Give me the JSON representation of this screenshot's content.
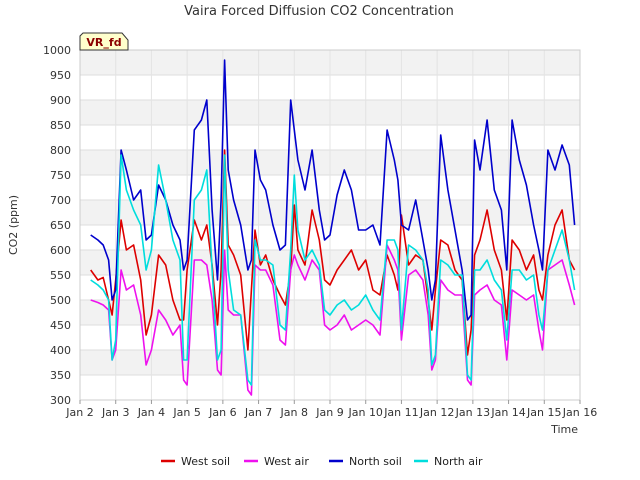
{
  "chart_data": {
    "type": "line",
    "title": "Vaira Forced Diffusion CO2 Concentration",
    "xlabel": "Time",
    "ylabel": "CO2 (ppm)",
    "tag": "VR_fd",
    "ylim": [
      300,
      1000
    ],
    "y_ticks": [
      300,
      350,
      400,
      450,
      500,
      550,
      600,
      650,
      700,
      750,
      800,
      850,
      900,
      950,
      1000
    ],
    "xlim": [
      2,
      16
    ],
    "x_ticks": [
      {
        "x": 2,
        "label": "Jan 2"
      },
      {
        "x": 3,
        "label": "Jan 3"
      },
      {
        "x": 4,
        "label": "Jan 4"
      },
      {
        "x": 5,
        "label": "Jan 5"
      },
      {
        "x": 6,
        "label": "Jan 6"
      },
      {
        "x": 7,
        "label": "Jan 7"
      },
      {
        "x": 8,
        "label": "Jan 8"
      },
      {
        "x": 9,
        "label": "Jan 9"
      },
      {
        "x": 10,
        "label": "Jan 10"
      },
      {
        "x": 11,
        "label": "Jan 11"
      },
      {
        "x": 12,
        "label": "Jan 12"
      },
      {
        "x": 13,
        "label": "Jan 13"
      },
      {
        "x": 14,
        "label": "Jan 14"
      },
      {
        "x": 15,
        "label": "Jan 15"
      },
      {
        "x": 16,
        "label": "Jan 16"
      }
    ],
    "grid": true,
    "legend_position": "bottom",
    "series": [
      {
        "name": "West soil",
        "color": "#dd0000",
        "x": [
          2.3,
          2.5,
          2.65,
          2.8,
          2.9,
          3.0,
          3.15,
          3.3,
          3.5,
          3.7,
          3.85,
          4.0,
          4.2,
          4.4,
          4.6,
          4.8,
          4.9,
          5.0,
          5.2,
          5.4,
          5.55,
          5.7,
          5.85,
          5.95,
          6.05,
          6.15,
          6.3,
          6.5,
          6.7,
          6.8,
          6.9,
          7.05,
          7.2,
          7.4,
          7.6,
          7.75,
          7.9,
          8.0,
          8.1,
          8.3,
          8.5,
          8.7,
          8.85,
          9.0,
          9.2,
          9.4,
          9.6,
          9.8,
          10.0,
          10.2,
          10.4,
          10.6,
          10.8,
          10.9,
          11.0,
          11.2,
          11.4,
          11.6,
          11.75,
          11.85,
          11.95,
          12.1,
          12.3,
          12.5,
          12.7,
          12.85,
          12.95,
          13.05,
          13.2,
          13.4,
          13.6,
          13.8,
          13.95,
          14.1,
          14.3,
          14.5,
          14.7,
          14.85,
          14.95,
          15.1,
          15.3,
          15.5,
          15.7,
          15.85
        ],
        "values": [
          560,
          540,
          545,
          500,
          470,
          540,
          660,
          600,
          610,
          540,
          430,
          470,
          590,
          570,
          500,
          460,
          460,
          560,
          660,
          620,
          650,
          570,
          450,
          560,
          800,
          610,
          590,
          550,
          400,
          520,
          640,
          570,
          590,
          540,
          510,
          490,
          560,
          690,
          600,
          570,
          680,
          620,
          540,
          530,
          560,
          580,
          600,
          560,
          580,
          520,
          510,
          590,
          550,
          520,
          670,
          570,
          590,
          580,
          500,
          440,
          520,
          620,
          610,
          560,
          540,
          390,
          440,
          590,
          620,
          680,
          600,
          560,
          460,
          620,
          600,
          560,
          590,
          520,
          500,
          590,
          650,
          680,
          580,
          560
        ]
      },
      {
        "name": "West air",
        "color": "#ee11ee",
        "x": [
          2.3,
          2.5,
          2.65,
          2.8,
          2.9,
          3.0,
          3.15,
          3.3,
          3.5,
          3.7,
          3.85,
          4.0,
          4.2,
          4.4,
          4.6,
          4.8,
          4.9,
          5.0,
          5.2,
          5.4,
          5.55,
          5.7,
          5.85,
          5.95,
          6.05,
          6.15,
          6.3,
          6.5,
          6.7,
          6.8,
          6.9,
          7.05,
          7.2,
          7.4,
          7.6,
          7.75,
          7.9,
          8.0,
          8.1,
          8.3,
          8.5,
          8.7,
          8.85,
          9.0,
          9.2,
          9.4,
          9.6,
          9.8,
          10.0,
          10.2,
          10.4,
          10.6,
          10.8,
          10.9,
          11.0,
          11.2,
          11.4,
          11.6,
          11.75,
          11.85,
          11.95,
          12.1,
          12.3,
          12.5,
          12.7,
          12.85,
          12.95,
          13.05,
          13.2,
          13.4,
          13.6,
          13.8,
          13.95,
          14.1,
          14.3,
          14.5,
          14.7,
          14.85,
          14.95,
          15.1,
          15.3,
          15.5,
          15.7,
          15.85
        ],
        "values": [
          500,
          495,
          490,
          480,
          380,
          400,
          560,
          520,
          530,
          470,
          370,
          400,
          480,
          460,
          430,
          450,
          340,
          330,
          580,
          580,
          570,
          500,
          360,
          350,
          600,
          480,
          470,
          470,
          320,
          310,
          570,
          560,
          560,
          530,
          420,
          410,
          560,
          590,
          570,
          540,
          580,
          560,
          450,
          440,
          450,
          470,
          440,
          450,
          460,
          450,
          430,
          610,
          580,
          560,
          420,
          550,
          560,
          540,
          470,
          360,
          380,
          540,
          520,
          510,
          510,
          340,
          330,
          510,
          520,
          530,
          500,
          490,
          380,
          520,
          510,
          500,
          510,
          440,
          400,
          560,
          570,
          580,
          530,
          490
        ]
      },
      {
        "name": "North soil",
        "color": "#0000cc",
        "x": [
          2.3,
          2.5,
          2.65,
          2.8,
          2.9,
          3.0,
          3.15,
          3.3,
          3.5,
          3.7,
          3.85,
          4.0,
          4.2,
          4.4,
          4.6,
          4.8,
          4.9,
          5.0,
          5.2,
          5.4,
          5.55,
          5.7,
          5.85,
          5.95,
          6.05,
          6.15,
          6.3,
          6.5,
          6.7,
          6.8,
          6.9,
          7.05,
          7.2,
          7.4,
          7.6,
          7.75,
          7.9,
          8.0,
          8.1,
          8.3,
          8.5,
          8.7,
          8.85,
          9.0,
          9.2,
          9.4,
          9.6,
          9.8,
          10.0,
          10.2,
          10.4,
          10.6,
          10.8,
          10.9,
          11.0,
          11.2,
          11.4,
          11.6,
          11.75,
          11.85,
          11.95,
          12.1,
          12.3,
          12.5,
          12.7,
          12.85,
          12.95,
          13.05,
          13.2,
          13.4,
          13.6,
          13.8,
          13.95,
          14.1,
          14.3,
          14.5,
          14.7,
          14.85,
          14.95,
          15.1,
          15.3,
          15.5,
          15.7,
          15.85
        ],
        "values": [
          630,
          620,
          610,
          580,
          500,
          520,
          800,
          760,
          700,
          720,
          620,
          630,
          730,
          700,
          650,
          620,
          560,
          580,
          840,
          860,
          900,
          680,
          540,
          700,
          980,
          760,
          700,
          650,
          560,
          580,
          800,
          740,
          720,
          650,
          600,
          610,
          900,
          840,
          780,
          720,
          800,
          680,
          620,
          630,
          710,
          760,
          720,
          640,
          640,
          650,
          610,
          840,
          780,
          740,
          650,
          640,
          700,
          620,
          560,
          500,
          540,
          830,
          720,
          640,
          560,
          460,
          470,
          820,
          760,
          860,
          720,
          680,
          560,
          860,
          780,
          730,
          650,
          600,
          560,
          800,
          760,
          810,
          770,
          650
        ]
      },
      {
        "name": "North air",
        "color": "#00dddd",
        "x": [
          2.3,
          2.5,
          2.65,
          2.8,
          2.9,
          3.0,
          3.15,
          3.3,
          3.5,
          3.7,
          3.85,
          4.0,
          4.2,
          4.4,
          4.6,
          4.8,
          4.9,
          5.0,
          5.2,
          5.4,
          5.55,
          5.7,
          5.85,
          5.95,
          6.05,
          6.15,
          6.3,
          6.5,
          6.7,
          6.8,
          6.9,
          7.05,
          7.2,
          7.4,
          7.6,
          7.75,
          7.9,
          8.0,
          8.1,
          8.3,
          8.5,
          8.7,
          8.85,
          9.0,
          9.2,
          9.4,
          9.6,
          9.8,
          10.0,
          10.2,
          10.4,
          10.6,
          10.8,
          10.9,
          11.0,
          11.2,
          11.4,
          11.6,
          11.75,
          11.85,
          11.95,
          12.1,
          12.3,
          12.5,
          12.7,
          12.85,
          12.95,
          13.05,
          13.2,
          13.4,
          13.6,
          13.8,
          13.95,
          14.1,
          14.3,
          14.5,
          14.7,
          14.85,
          14.95,
          15.1,
          15.3,
          15.5,
          15.7,
          15.85
        ],
        "values": [
          540,
          530,
          520,
          500,
          380,
          420,
          790,
          720,
          680,
          650,
          560,
          600,
          770,
          700,
          620,
          580,
          380,
          380,
          700,
          720,
          760,
          560,
          380,
          400,
          790,
          560,
          480,
          470,
          340,
          330,
          620,
          580,
          580,
          570,
          450,
          440,
          600,
          750,
          640,
          580,
          600,
          570,
          480,
          470,
          490,
          500,
          480,
          490,
          510,
          480,
          460,
          620,
          620,
          600,
          440,
          610,
          600,
          580,
          520,
          370,
          390,
          580,
          570,
          550,
          550,
          350,
          340,
          560,
          560,
          580,
          540,
          520,
          420,
          560,
          560,
          540,
          550,
          470,
          440,
          560,
          600,
          640,
          580,
          520
        ]
      }
    ]
  }
}
